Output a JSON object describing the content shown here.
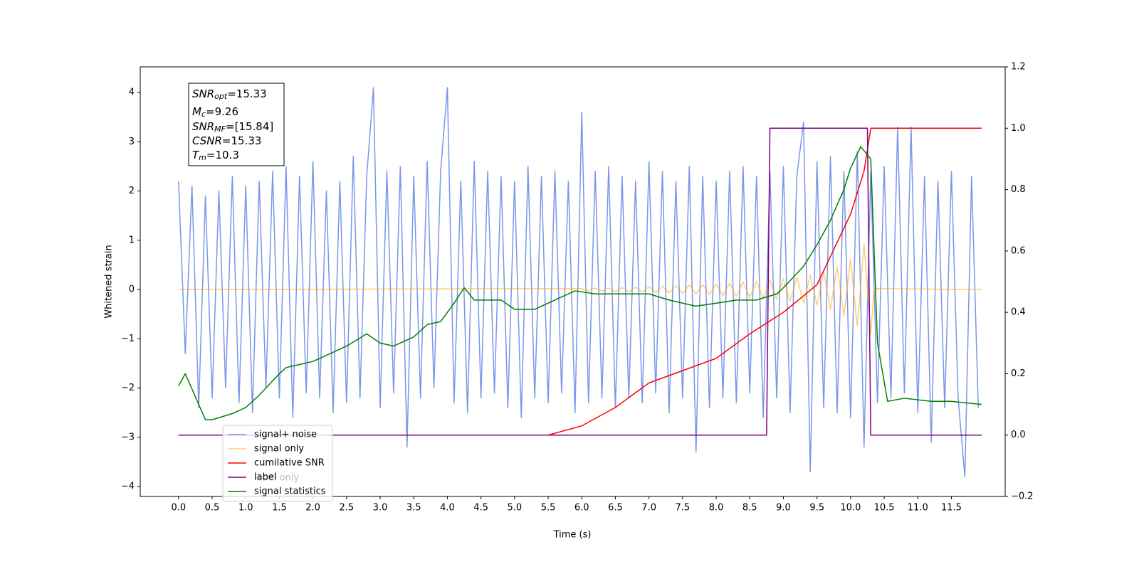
{
  "chart_data": {
    "type": "line",
    "xlabel": "Time (s)",
    "ylabel": "Whitened strain",
    "xlim": [
      -0.57,
      12.3
    ],
    "ylim": [
      -4.2,
      4.52
    ],
    "y2lim": [
      -0.2,
      1.2
    ],
    "xticks": [
      {
        "value": 0,
        "label": "0.0"
      },
      0.5,
      {
        "value": 1,
        "label": "1.0"
      },
      1.5,
      {
        "value": 2,
        "label": "2.0"
      },
      2.5,
      {
        "value": 3,
        "label": "3.0"
      },
      3.5,
      {
        "value": 4,
        "label": "4.0"
      },
      4.5,
      {
        "value": 5,
        "label": "5.0"
      },
      5.5,
      {
        "value": 6,
        "label": "6.0"
      },
      6.5,
      {
        "value": 7,
        "label": "7.0"
      },
      7.5,
      {
        "value": 8,
        "label": "8.0"
      },
      8.5,
      {
        "value": 9,
        "label": "9.0"
      },
      9.5,
      {
        "value": 10,
        "label": "10.0"
      },
      10.5,
      {
        "value": 11,
        "label": "11.0"
      },
      11.5
    ],
    "yticks": [
      {
        "value": -4,
        "label": "−4"
      },
      {
        "value": -3,
        "label": "−3"
      },
      {
        "value": -2,
        "label": "−2"
      },
      {
        "value": -1,
        "label": "−1"
      },
      0,
      1,
      2,
      3,
      4
    ],
    "y2ticks": [
      {
        "value": -0.2,
        "label": "−0.2"
      },
      {
        "value": 0,
        "label": "0.0"
      },
      0.2,
      0.4,
      0.6,
      0.8,
      {
        "value": 1,
        "label": "1.0"
      },
      1.2
    ],
    "legend": "lower left",
    "legend_ghost": "label only",
    "annotations": [
      {
        "symbol": "SNR",
        "sub": "opt",
        "text": "=15.33"
      },
      {
        "symbol": "M",
        "sub": "c",
        "text": "=9.26"
      },
      {
        "symbol": "SNR",
        "sub": "MF",
        "text": "=[15.84]"
      },
      {
        "symbol": "CSNR",
        "text": "=15.33"
      },
      {
        "symbol": "T",
        "sub": "m",
        "text": "=10.3"
      }
    ],
    "series": [
      {
        "name": "signal+ noise",
        "color": "#4169e1",
        "opacity": 0.7,
        "axis": "y",
        "x": [
          0,
          0.1,
          0.2,
          0.3,
          0.4,
          0.5,
          0.6,
          0.7,
          0.8,
          0.9,
          1,
          1.1,
          1.2,
          1.3,
          1.4,
          1.5,
          1.6,
          1.7,
          1.8,
          1.9,
          2,
          2.1,
          2.2,
          2.3,
          2.4,
          2.5,
          2.6,
          2.7,
          2.8,
          2.9,
          3,
          3.1,
          3.2,
          3.3,
          3.4,
          3.5,
          3.6,
          3.7,
          3.8,
          3.9,
          4,
          4.1,
          4.2,
          4.3,
          4.4,
          4.5,
          4.6,
          4.7,
          4.8,
          4.9,
          5,
          5.1,
          5.2,
          5.3,
          5.4,
          5.5,
          5.6,
          5.7,
          5.8,
          5.9,
          6,
          6.1,
          6.2,
          6.3,
          6.4,
          6.5,
          6.6,
          6.7,
          6.8,
          6.9,
          7,
          7.1,
          7.2,
          7.3,
          7.4,
          7.5,
          7.6,
          7.7,
          7.8,
          7.9,
          8,
          8.1,
          8.2,
          8.3,
          8.4,
          8.5,
          8.6,
          8.7,
          8.8,
          8.9,
          9,
          9.1,
          9.2,
          9.3,
          9.4,
          9.5,
          9.6,
          9.7,
          9.8,
          9.9,
          10,
          10.1,
          10.2,
          10.3,
          10.4,
          10.5,
          10.6,
          10.7,
          10.8,
          10.9,
          11,
          11.1,
          11.2,
          11.3,
          11.4,
          11.5,
          11.6,
          11.7,
          11.8,
          11.9
        ],
        "values": [
          2.2,
          -1.3,
          2.1,
          -2.4,
          1.9,
          -2.2,
          2.0,
          -2.0,
          2.3,
          -2.3,
          2.1,
          -2.5,
          2.2,
          -2.0,
          2.4,
          -2.2,
          2.5,
          -2.6,
          2.3,
          -2.1,
          2.6,
          -2.2,
          2.0,
          -2.5,
          2.2,
          -2.3,
          2.7,
          -2.2,
          2.3,
          4.1,
          -2.4,
          2.4,
          -2.1,
          2.5,
          -3.2,
          2.3,
          -2.2,
          2.6,
          -2.0,
          2.4,
          4.1,
          -2.3,
          2.2,
          -2.5,
          2.6,
          -2.2,
          2.4,
          -2.1,
          2.3,
          -2.4,
          2.2,
          -2.6,
          2.5,
          -2.2,
          2.3,
          -2.3,
          2.4,
          -2.1,
          2.2,
          -2.5,
          3.6,
          -2.3,
          2.4,
          -2.2,
          2.5,
          -2.4,
          2.3,
          -2.2,
          2.2,
          -2.3,
          2.6,
          -2.1,
          2.4,
          -2.5,
          2.2,
          -2.2,
          2.5,
          -3.3,
          2.3,
          -2.4,
          2.2,
          -2.2,
          2.4,
          -2.3,
          2.5,
          -2.1,
          2.3,
          -2.6,
          2.4,
          -2.2,
          2.5,
          -2.5,
          2.3,
          3.4,
          -3.7,
          2.6,
          -2.4,
          2.7,
          -2.5,
          2.4,
          -2.6,
          2.8,
          -3.2,
          2.4,
          -2.3,
          2.5,
          -2.2,
          3.3,
          -2.1,
          3.3,
          -2.5,
          2.3,
          -3.1,
          2.2,
          -2.4,
          2.4,
          -2.2,
          -3.8,
          2.3,
          -2.4
        ]
      },
      {
        "name": "signal only",
        "color": "#ffa500",
        "opacity": 0.55,
        "axis": "y",
        "x": [
          0,
          6,
          6.1,
          6.2,
          6.3,
          6.4,
          6.5,
          6.6,
          6.7,
          6.8,
          6.9,
          7,
          7.1,
          7.2,
          7.3,
          7.4,
          7.5,
          7.6,
          7.7,
          7.8,
          7.9,
          8,
          8.1,
          8.2,
          8.3,
          8.4,
          8.5,
          8.6,
          8.7,
          8.8,
          8.9,
          9,
          9.1,
          9.2,
          9.3,
          9.4,
          9.5,
          9.6,
          9.7,
          9.8,
          9.9,
          10,
          10.1,
          10.2,
          10.3,
          10.35,
          11.95
        ],
        "values": [
          0,
          0.02,
          -0.02,
          0.03,
          -0.03,
          0.03,
          -0.04,
          0.04,
          -0.05,
          0.05,
          -0.05,
          0.06,
          -0.06,
          0.07,
          -0.07,
          0.08,
          -0.08,
          0.09,
          -0.09,
          0.1,
          -0.1,
          0.11,
          -0.12,
          0.13,
          -0.14,
          0.15,
          -0.16,
          0.17,
          -0.18,
          0.19,
          -0.2,
          0.22,
          -0.23,
          0.25,
          -0.27,
          0.29,
          -0.32,
          0.36,
          -0.4,
          0.46,
          -0.53,
          0.62,
          -0.75,
          0.92,
          -0.9,
          0.02,
          0
        ]
      },
      {
        "name": "cumilative SNR",
        "color": "#ff0000",
        "opacity": 1,
        "axis": "y2",
        "x": [
          0,
          5.5,
          6,
          6.5,
          7,
          7.5,
          8,
          8.5,
          9,
          9.5,
          10,
          10.2,
          10.3,
          11.95
        ],
        "values": [
          0,
          0,
          0.03,
          0.09,
          0.17,
          0.21,
          0.25,
          0.33,
          0.4,
          0.49,
          0.72,
          0.86,
          1,
          1
        ]
      },
      {
        "name": "label",
        "color": "#800080",
        "opacity": 1,
        "axis": "y2",
        "x": [
          0,
          8.75,
          8.8,
          10.25,
          10.3,
          11.95
        ],
        "values": [
          0,
          0,
          1,
          1,
          0,
          0
        ]
      },
      {
        "name": "signal statistics",
        "color": "#008000",
        "opacity": 1,
        "axis": "y2",
        "x": [
          0,
          0.1,
          0.2,
          0.4,
          0.5,
          0.8,
          1,
          1.2,
          1.5,
          1.6,
          1.8,
          2,
          2.2,
          2.5,
          2.8,
          3,
          3.2,
          3.5,
          3.7,
          3.9,
          4,
          4.1,
          4.25,
          4.4,
          4.6,
          4.8,
          5,
          5.3,
          5.5,
          5.7,
          5.9,
          6.2,
          6.5,
          7,
          7.3,
          7.7,
          8,
          8.3,
          8.6,
          8.9,
          9,
          9.3,
          9.5,
          9.7,
          9.9,
          10,
          10.15,
          10.3,
          10.4,
          10.55,
          10.8,
          11.2,
          11.5,
          11.95
        ],
        "values": [
          0.16,
          0.2,
          0.15,
          0.05,
          0.05,
          0.07,
          0.09,
          0.13,
          0.2,
          0.22,
          0.23,
          0.24,
          0.26,
          0.29,
          0.33,
          0.3,
          0.29,
          0.32,
          0.36,
          0.37,
          0.4,
          0.43,
          0.48,
          0.44,
          0.44,
          0.44,
          0.41,
          0.41,
          0.43,
          0.45,
          0.47,
          0.46,
          0.46,
          0.46,
          0.44,
          0.42,
          0.43,
          0.44,
          0.44,
          0.46,
          0.48,
          0.55,
          0.62,
          0.7,
          0.8,
          0.87,
          0.94,
          0.9,
          0.3,
          0.11,
          0.12,
          0.11,
          0.11,
          0.1
        ]
      }
    ]
  }
}
